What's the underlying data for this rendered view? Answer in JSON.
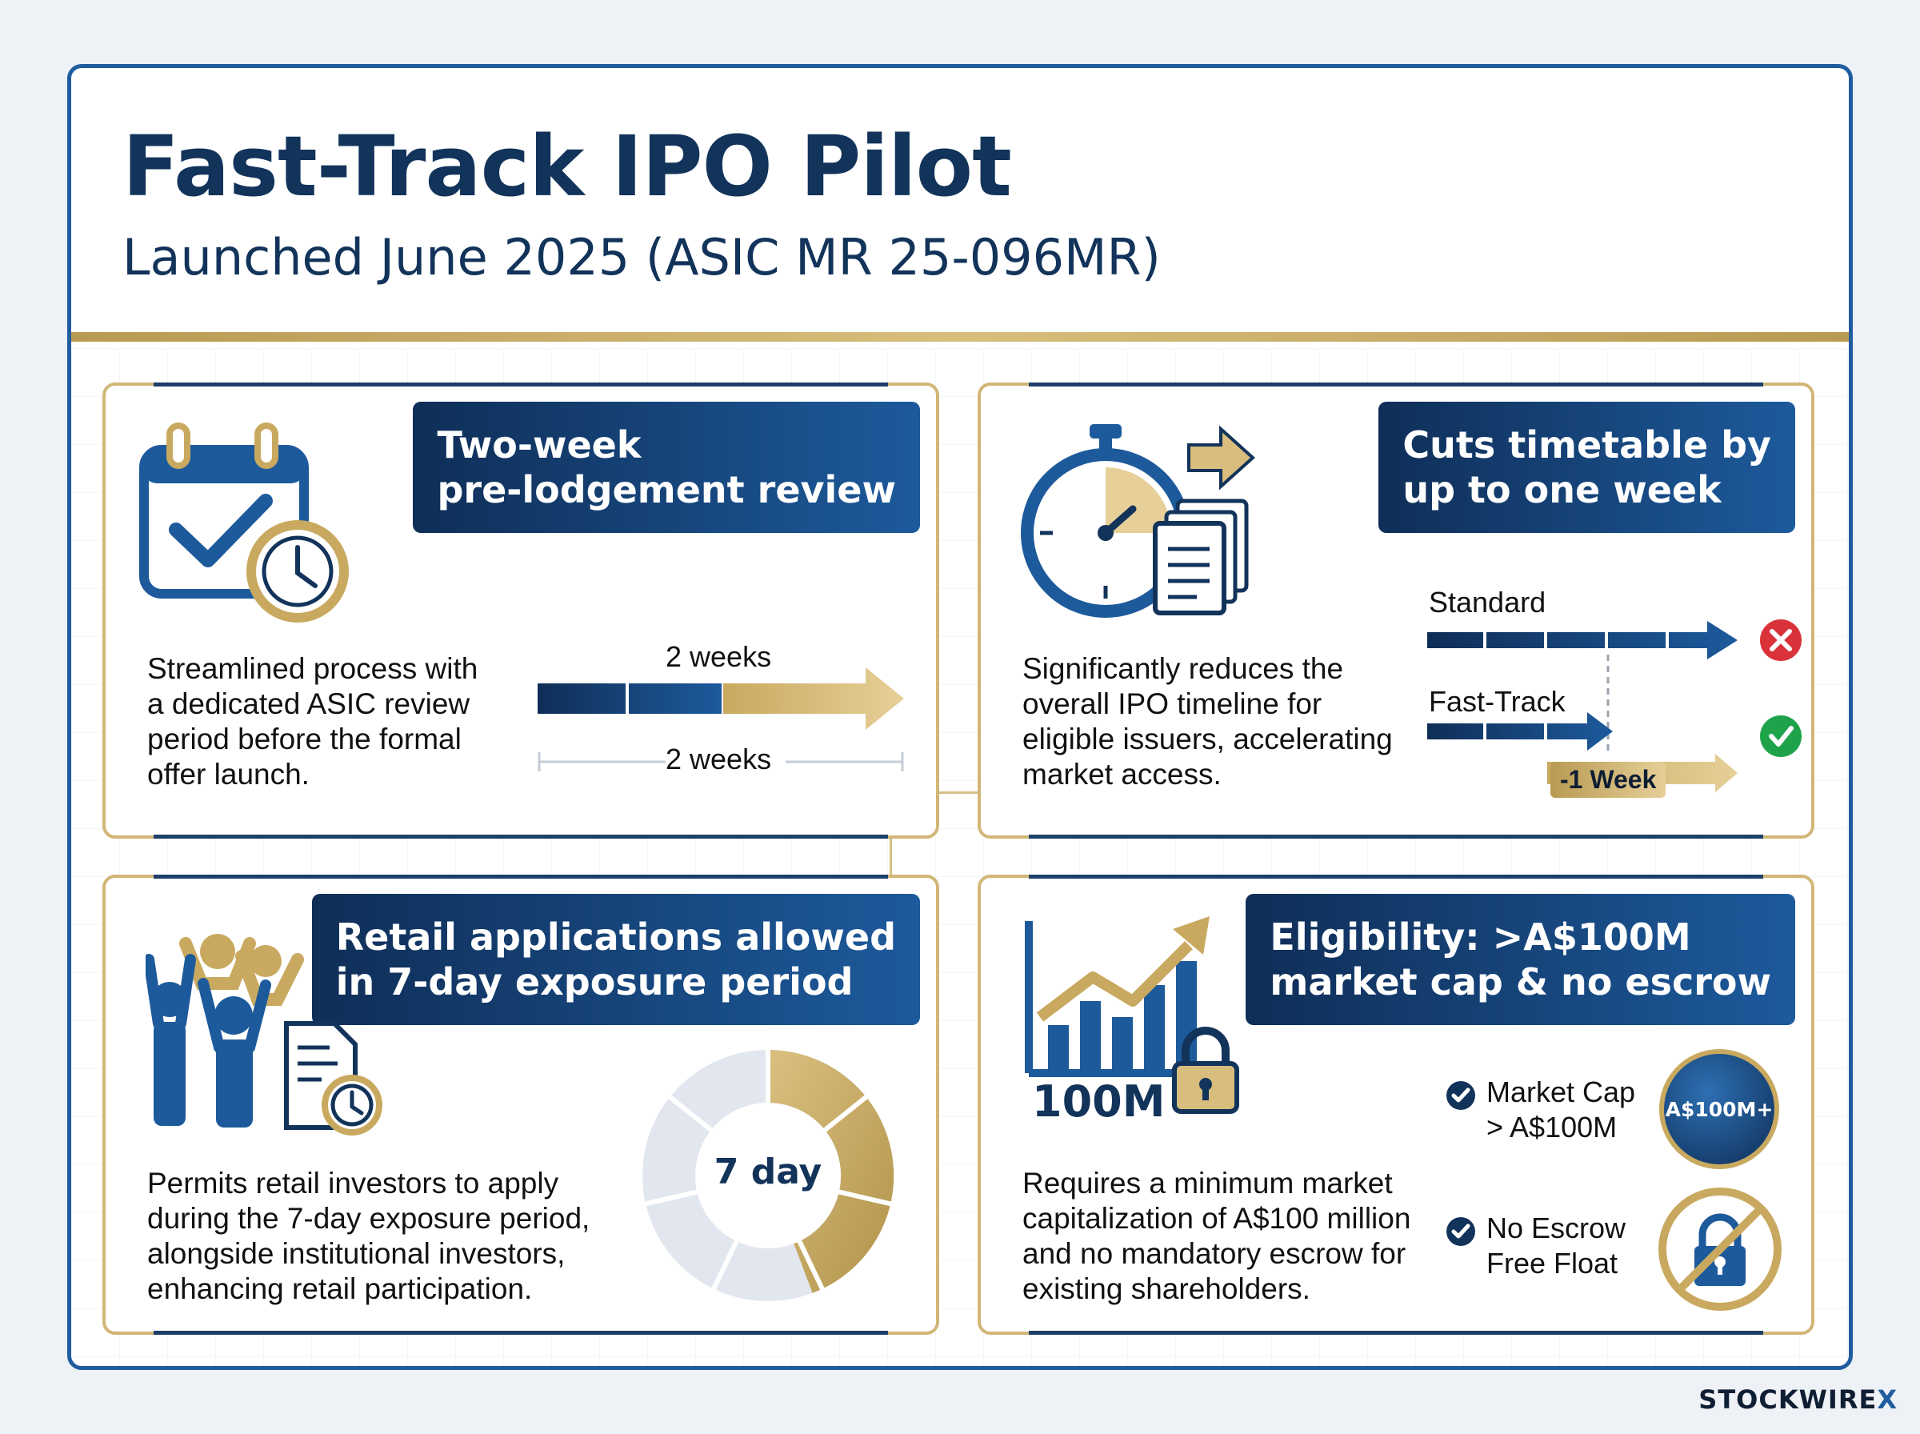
{
  "header": {
    "title": "Fast-Track IPO Pilot",
    "subtitle": "Launched June 2025 (ASIC MR 25-096MR)"
  },
  "cards": [
    {
      "banner": [
        "Two-week",
        "pre-lodgement review"
      ],
      "description": [
        "Streamlined process with",
        "a dedicated ASIC review",
        "period before the formal",
        "offer launch."
      ],
      "timeline_top_label": "2 weeks",
      "timeline_bottom_label": "2 weeks",
      "icon": "calendar-check-clock-icon"
    },
    {
      "banner": [
        "Cuts timetable by",
        "up to one week"
      ],
      "description": [
        "Significantly reduces the",
        "overall IPO timeline for",
        "eligible issuers, accelerating",
        "market access."
      ],
      "standard_label": "Standard",
      "fasttrack_label": "Fast-Track",
      "saving_label": "-1 Week",
      "icon": "stopwatch-documents-icon"
    },
    {
      "banner": [
        "Retail applications allowed",
        "in 7-day exposure period"
      ],
      "description": [
        "Permits retail investors to apply",
        "during the 7-day exposure period,",
        "alongside institutional investors,",
        "enhancing retail participation."
      ],
      "donut_label": "7 day",
      "icon": "people-document-clock-icon"
    },
    {
      "banner": [
        "Eligibility: >A$100M",
        "market cap & no escrow"
      ],
      "description": [
        "Requires a minimum market",
        "capitalization of A$100 million",
        "and no mandatory escrow for",
        "existing shareholders."
      ],
      "chart_label": "100M",
      "criteria": [
        {
          "lines": [
            "Market Cap",
            "> A$100M"
          ],
          "badge": "A$100M+"
        },
        {
          "lines": [
            "No Escrow",
            "Free Float"
          ]
        }
      ],
      "icon": "growth-chart-lock-icon"
    }
  ],
  "brand": {
    "name": "STOCKWIRE",
    "mark": "X"
  },
  "colors": {
    "navy": "#12335a",
    "blue": "#1d5a9c",
    "gold": "#c9a95f",
    "red": "#d9323a",
    "green": "#1fa34a"
  }
}
